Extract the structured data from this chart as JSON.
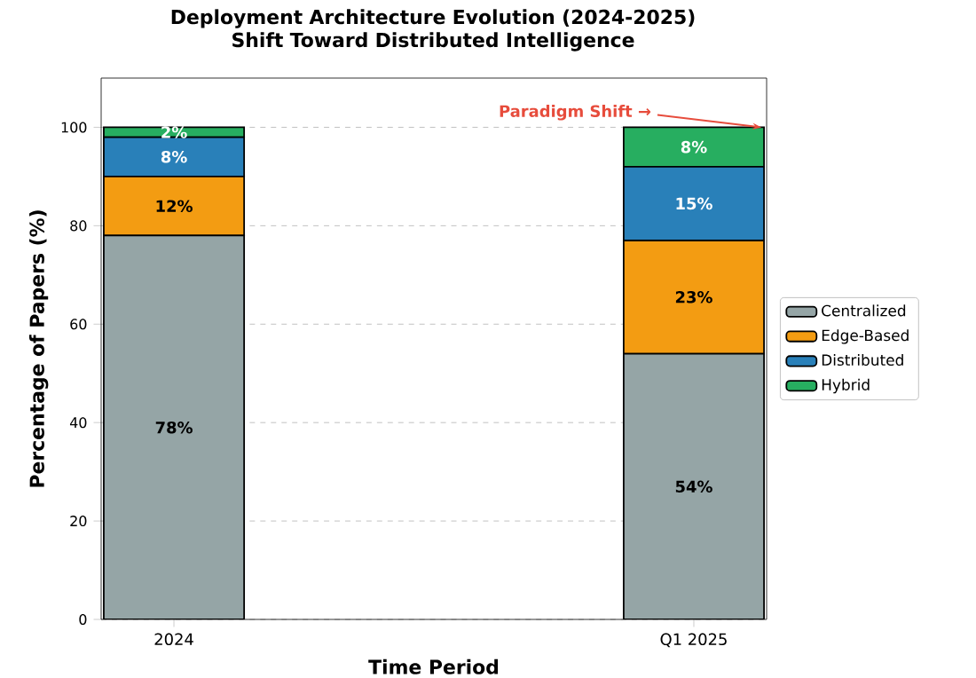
{
  "chart_data": {
    "type": "bar",
    "stacked": true,
    "title": "Deployment Architecture Evolution (2024-2025)\nShift Toward Distributed Intelligence",
    "xlabel": "Time Period",
    "ylabel": "Percentage of Papers (%)",
    "categories": [
      "2024",
      "Q1 2025"
    ],
    "series": [
      {
        "name": "Centralized",
        "color": "#95a5a6",
        "values": [
          78,
          54
        ],
        "value_labels": [
          "78%",
          "54%"
        ]
      },
      {
        "name": "Edge-Based",
        "color": "#f39c12",
        "values": [
          12,
          23
        ],
        "value_labels": [
          "12%",
          "23%"
        ]
      },
      {
        "name": "Distributed",
        "color": "#2980b9",
        "values": [
          8,
          15
        ],
        "value_labels": [
          "8%",
          "15%"
        ]
      },
      {
        "name": "Hybrid",
        "color": "#27ae60",
        "values": [
          2,
          8
        ],
        "value_labels": [
          "2%",
          "8%"
        ]
      }
    ],
    "ylim": [
      0,
      110
    ],
    "yticks": [
      0,
      20,
      40,
      60,
      80,
      100
    ],
    "grid": "y",
    "legend": "right",
    "annotations": [
      {
        "text": "Paradigm Shift →",
        "x": "Q1 2025",
        "y": 100
      }
    ]
  }
}
